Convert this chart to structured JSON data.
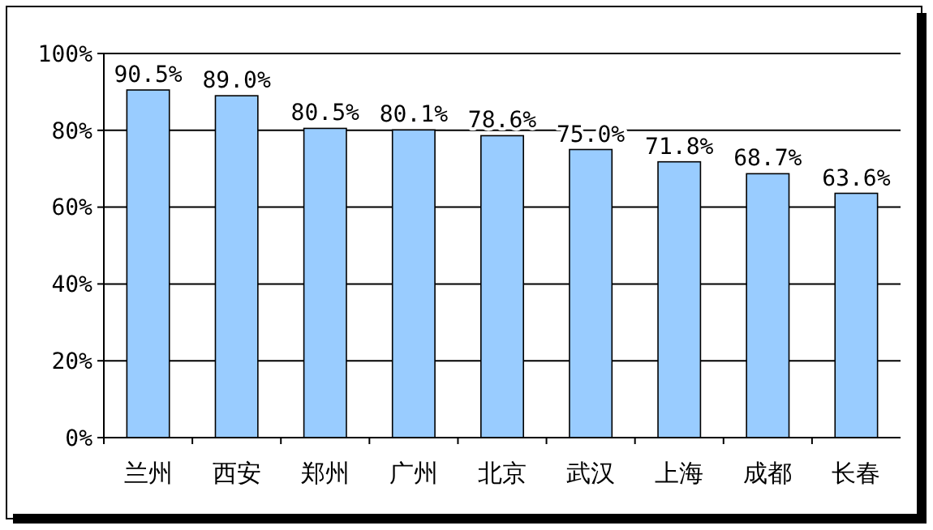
{
  "chart_data": {
    "type": "bar",
    "categories": [
      "兰州",
      "西安",
      "郑州",
      "广州",
      "北京",
      "武汉",
      "上海",
      "成都",
      "长春"
    ],
    "values": [
      90.5,
      89.0,
      80.5,
      80.1,
      78.6,
      75.0,
      71.8,
      68.7,
      63.6
    ],
    "value_labels": [
      "90.5%",
      "89.0%",
      "80.5%",
      "80.1%",
      "78.6%",
      "75.0%",
      "71.8%",
      "68.7%",
      "63.6%"
    ],
    "color": "#99ccff",
    "ylim": [
      0,
      100
    ],
    "yticks": [
      {
        "value": 0,
        "label": "0%"
      },
      {
        "value": 20,
        "label": "20%"
      },
      {
        "value": 40,
        "label": "40%"
      },
      {
        "value": 60,
        "label": "60%"
      },
      {
        "value": 80,
        "label": "80%"
      },
      {
        "value": 100,
        "label": "100%"
      }
    ],
    "grid": "y"
  }
}
